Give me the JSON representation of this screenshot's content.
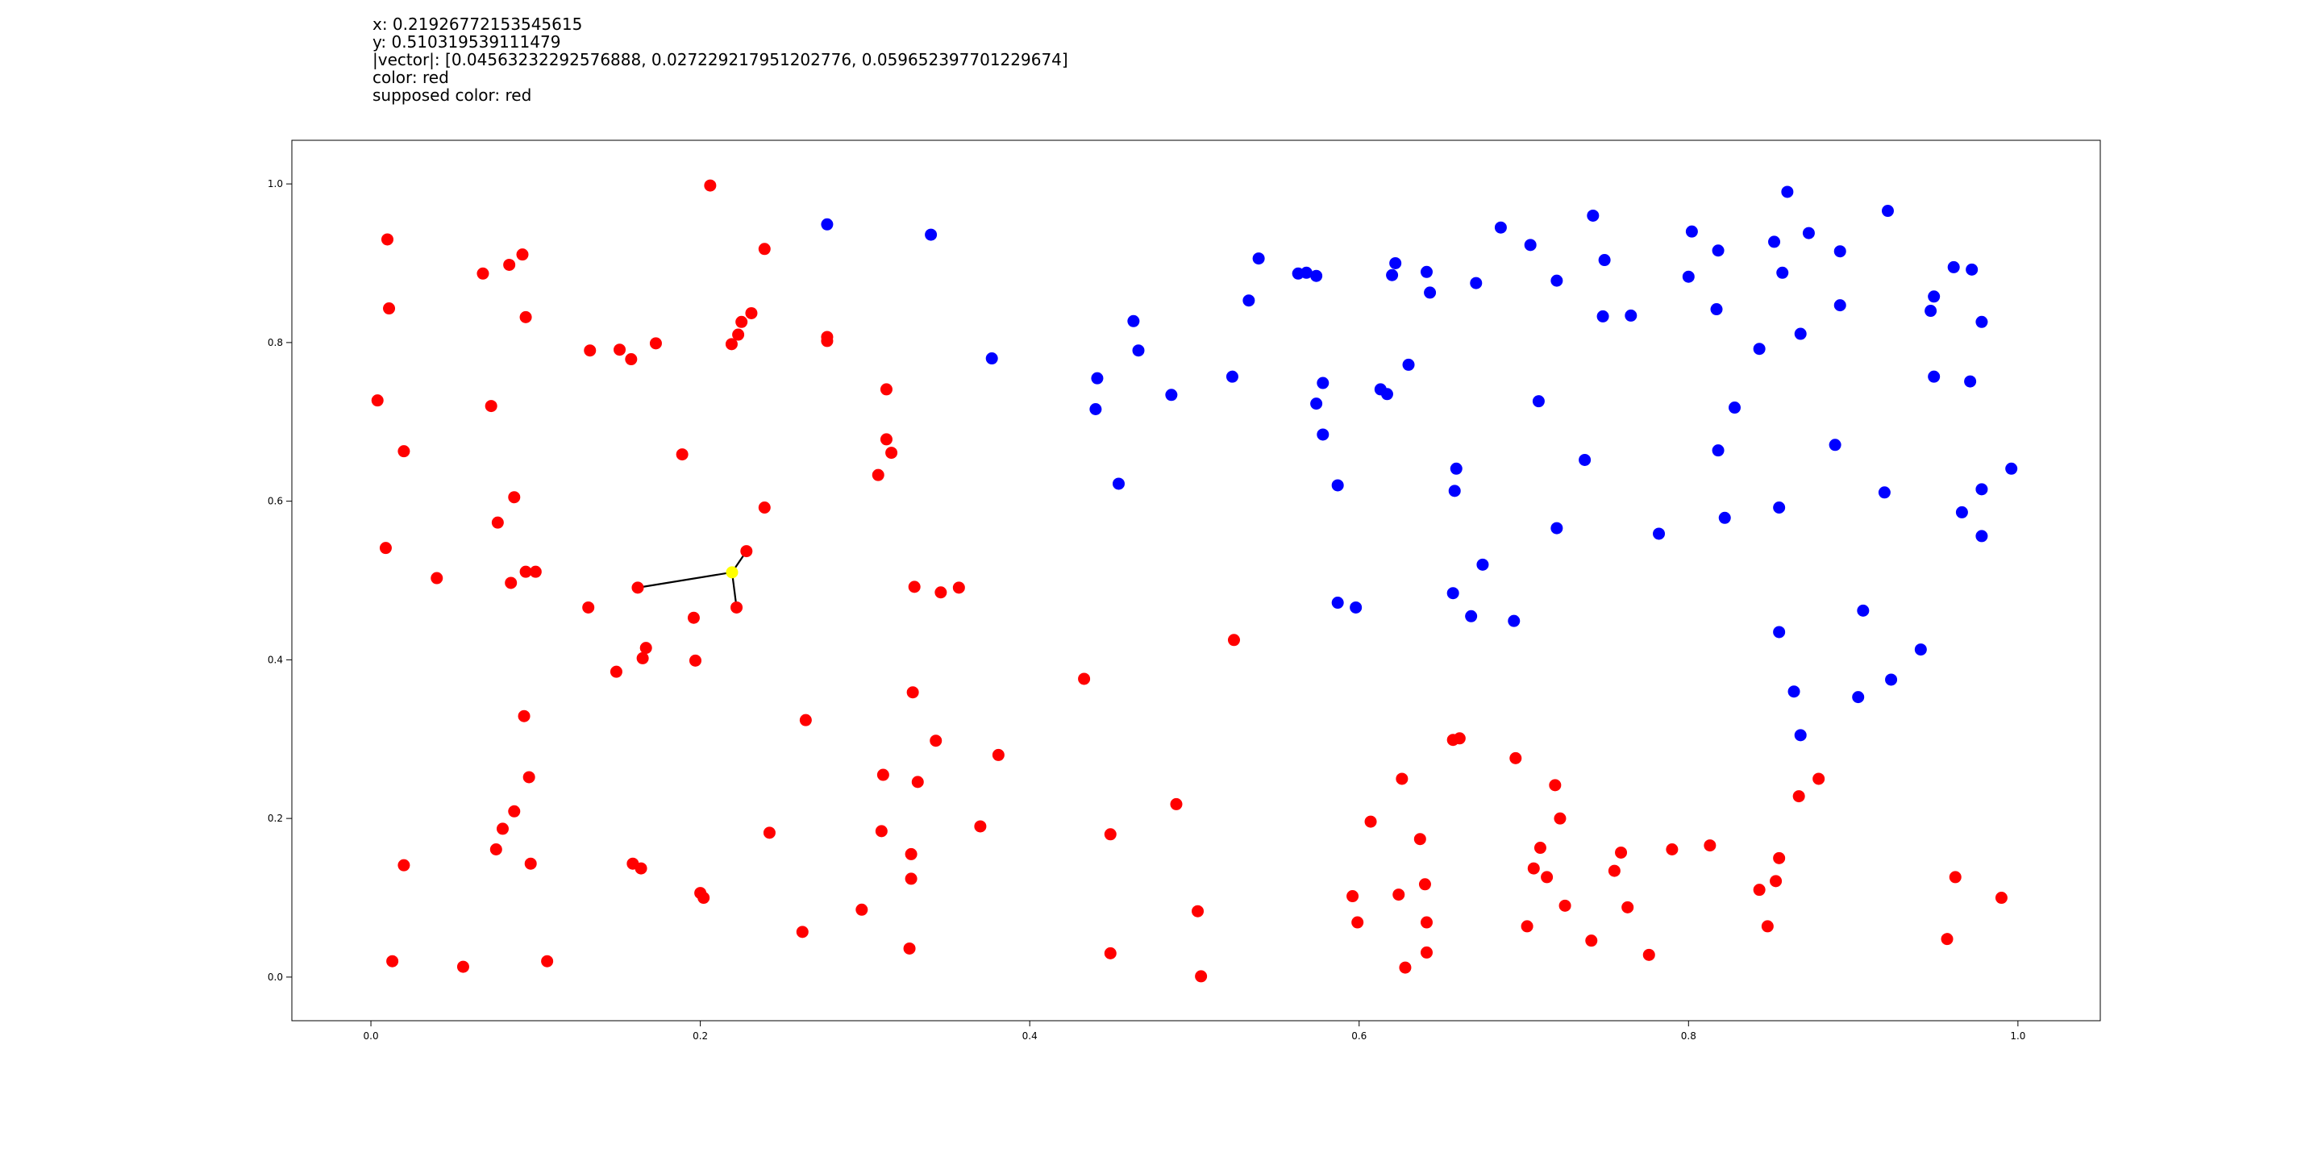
{
  "readout": {
    "x_line": "x: 0.21926772153545615",
    "y_line": "y: 0.510319539111479",
    "vector_line": "|vector|: [0.04563232292576888, 0.027229217951202776, 0.059652397701229674]",
    "color_line": "color: red",
    "supposed_color_line": "supposed color: red"
  },
  "chart_data": {
    "type": "scatter",
    "xlim": [
      -0.048,
      1.05
    ],
    "ylim": [
      -0.055,
      1.055
    ],
    "x_ticks": [
      0.0,
      0.2,
      0.4,
      0.6,
      0.8,
      1.0
    ],
    "x_tick_labels": [
      "0.0",
      "0.2",
      "0.4",
      "0.6",
      "0.8",
      "1.0"
    ],
    "y_ticks": [
      0.0,
      0.2,
      0.4,
      0.6,
      0.8,
      1.0
    ],
    "y_tick_labels": [
      "0.0",
      "0.2",
      "0.4",
      "0.6",
      "0.8",
      "1.0"
    ],
    "grid": false,
    "colors": {
      "red": "#ff0000",
      "blue": "#0000ff",
      "query": "#ffff00",
      "neighbor_line": "#000000"
    },
    "series": [
      {
        "color": "red",
        "points": [
          [
            0.206,
            0.998
          ],
          [
            0.01,
            0.93
          ],
          [
            0.068,
            0.887
          ],
          [
            0.084,
            0.898
          ],
          [
            0.092,
            0.911
          ],
          [
            0.011,
            0.843
          ],
          [
            0.094,
            0.832
          ],
          [
            0.239,
            0.918
          ],
          [
            0.231,
            0.837
          ],
          [
            0.225,
            0.826
          ],
          [
            0.223,
            0.81
          ],
          [
            0.219,
            0.798
          ],
          [
            0.277,
            0.807
          ],
          [
            0.277,
            0.802
          ],
          [
            0.133,
            0.79
          ],
          [
            0.151,
            0.791
          ],
          [
            0.158,
            0.779
          ],
          [
            0.173,
            0.799
          ],
          [
            0.004,
            0.727
          ],
          [
            0.073,
            0.72
          ],
          [
            0.02,
            0.663
          ],
          [
            0.313,
            0.741
          ],
          [
            0.313,
            0.678
          ],
          [
            0.316,
            0.661
          ],
          [
            0.308,
            0.633
          ],
          [
            0.189,
            0.659
          ],
          [
            0.087,
            0.605
          ],
          [
            0.077,
            0.573
          ],
          [
            0.009,
            0.541
          ],
          [
            0.04,
            0.503
          ],
          [
            0.085,
            0.497
          ],
          [
            0.094,
            0.511
          ],
          [
            0.1,
            0.511
          ],
          [
            0.239,
            0.592
          ],
          [
            0.228,
            0.537
          ],
          [
            0.162,
            0.491
          ],
          [
            0.222,
            0.466
          ],
          [
            0.196,
            0.453
          ],
          [
            0.132,
            0.466
          ],
          [
            0.167,
            0.415
          ],
          [
            0.165,
            0.402
          ],
          [
            0.197,
            0.399
          ],
          [
            0.149,
            0.385
          ],
          [
            0.33,
            0.492
          ],
          [
            0.346,
            0.485
          ],
          [
            0.357,
            0.491
          ],
          [
            0.093,
            0.329
          ],
          [
            0.096,
            0.252
          ],
          [
            0.087,
            0.209
          ],
          [
            0.08,
            0.187
          ],
          [
            0.076,
            0.161
          ],
          [
            0.097,
            0.143
          ],
          [
            0.02,
            0.141
          ],
          [
            0.264,
            0.324
          ],
          [
            0.329,
            0.359
          ],
          [
            0.343,
            0.298
          ],
          [
            0.381,
            0.28
          ],
          [
            0.311,
            0.255
          ],
          [
            0.332,
            0.246
          ],
          [
            0.37,
            0.19
          ],
          [
            0.31,
            0.184
          ],
          [
            0.242,
            0.182
          ],
          [
            0.328,
            0.155
          ],
          [
            0.328,
            0.124
          ],
          [
            0.159,
            0.143
          ],
          [
            0.164,
            0.137
          ],
          [
            0.2,
            0.106
          ],
          [
            0.202,
            0.1
          ],
          [
            0.298,
            0.085
          ],
          [
            0.262,
            0.057
          ],
          [
            0.327,
            0.036
          ],
          [
            0.013,
            0.02
          ],
          [
            0.056,
            0.013
          ],
          [
            0.107,
            0.02
          ],
          [
            0.433,
            0.376
          ],
          [
            0.524,
            0.425
          ],
          [
            0.489,
            0.218
          ],
          [
            0.449,
            0.18
          ],
          [
            0.502,
            0.083
          ],
          [
            0.449,
            0.03
          ],
          [
            0.504,
            0.001
          ],
          [
            0.657,
            0.299
          ],
          [
            0.661,
            0.301
          ],
          [
            0.695,
            0.276
          ],
          [
            0.626,
            0.25
          ],
          [
            0.719,
            0.242
          ],
          [
            0.607,
            0.196
          ],
          [
            0.722,
            0.2
          ],
          [
            0.637,
            0.174
          ],
          [
            0.71,
            0.163
          ],
          [
            0.706,
            0.137
          ],
          [
            0.714,
            0.126
          ],
          [
            0.596,
            0.102
          ],
          [
            0.624,
            0.104
          ],
          [
            0.64,
            0.117
          ],
          [
            0.599,
            0.069
          ],
          [
            0.641,
            0.069
          ],
          [
            0.641,
            0.031
          ],
          [
            0.628,
            0.012
          ],
          [
            0.725,
            0.09
          ],
          [
            0.702,
            0.064
          ],
          [
            0.741,
            0.046
          ],
          [
            0.759,
            0.157
          ],
          [
            0.755,
            0.134
          ],
          [
            0.763,
            0.088
          ],
          [
            0.776,
            0.028
          ],
          [
            0.79,
            0.161
          ],
          [
            0.813,
            0.166
          ],
          [
            0.879,
            0.25
          ],
          [
            0.867,
            0.228
          ],
          [
            0.855,
            0.15
          ],
          [
            0.843,
            0.11
          ],
          [
            0.853,
            0.121
          ],
          [
            0.848,
            0.064
          ],
          [
            0.962,
            0.126
          ],
          [
            0.957,
            0.048
          ],
          [
            0.99,
            0.1
          ]
        ]
      },
      {
        "color": "blue",
        "points": [
          [
            0.277,
            0.949
          ],
          [
            0.34,
            0.936
          ],
          [
            0.377,
            0.78
          ],
          [
            0.539,
            0.906
          ],
          [
            0.533,
            0.853
          ],
          [
            0.563,
            0.887
          ],
          [
            0.568,
            0.888
          ],
          [
            0.574,
            0.884
          ],
          [
            0.622,
            0.9
          ],
          [
            0.62,
            0.885
          ],
          [
            0.641,
            0.889
          ],
          [
            0.643,
            0.863
          ],
          [
            0.671,
            0.875
          ],
          [
            0.463,
            0.827
          ],
          [
            0.466,
            0.79
          ],
          [
            0.441,
            0.755
          ],
          [
            0.44,
            0.716
          ],
          [
            0.486,
            0.734
          ],
          [
            0.523,
            0.757
          ],
          [
            0.578,
            0.749
          ],
          [
            0.574,
            0.723
          ],
          [
            0.578,
            0.684
          ],
          [
            0.613,
            0.741
          ],
          [
            0.617,
            0.735
          ],
          [
            0.63,
            0.772
          ],
          [
            0.454,
            0.622
          ],
          [
            0.587,
            0.62
          ],
          [
            0.587,
            0.472
          ],
          [
            0.598,
            0.466
          ],
          [
            0.659,
            0.641
          ],
          [
            0.658,
            0.613
          ],
          [
            0.675,
            0.52
          ],
          [
            0.657,
            0.484
          ],
          [
            0.668,
            0.455
          ],
          [
            0.694,
            0.449
          ],
          [
            0.686,
            0.945
          ],
          [
            0.704,
            0.923
          ],
          [
            0.742,
            0.96
          ],
          [
            0.749,
            0.904
          ],
          [
            0.72,
            0.878
          ],
          [
            0.748,
            0.833
          ],
          [
            0.765,
            0.834
          ],
          [
            0.709,
            0.726
          ],
          [
            0.737,
            0.652
          ],
          [
            0.72,
            0.566
          ],
          [
            0.782,
            0.559
          ],
          [
            0.802,
            0.94
          ],
          [
            0.818,
            0.916
          ],
          [
            0.8,
            0.883
          ],
          [
            0.817,
            0.842
          ],
          [
            0.86,
            0.99
          ],
          [
            0.852,
            0.927
          ],
          [
            0.873,
            0.938
          ],
          [
            0.857,
            0.888
          ],
          [
            0.892,
            0.915
          ],
          [
            0.921,
            0.966
          ],
          [
            0.892,
            0.847
          ],
          [
            0.868,
            0.811
          ],
          [
            0.843,
            0.792
          ],
          [
            0.828,
            0.718
          ],
          [
            0.818,
            0.664
          ],
          [
            0.889,
            0.671
          ],
          [
            0.822,
            0.579
          ],
          [
            0.855,
            0.592
          ],
          [
            0.919,
            0.611
          ],
          [
            0.949,
            0.757
          ],
          [
            0.961,
            0.895
          ],
          [
            0.972,
            0.892
          ],
          [
            0.949,
            0.858
          ],
          [
            0.947,
            0.84
          ],
          [
            0.978,
            0.826
          ],
          [
            0.971,
            0.751
          ],
          [
            0.978,
            0.615
          ],
          [
            0.966,
            0.586
          ],
          [
            0.978,
            0.556
          ],
          [
            0.996,
            0.641
          ],
          [
            0.855,
            0.435
          ],
          [
            0.906,
            0.462
          ],
          [
            0.864,
            0.36
          ],
          [
            0.868,
            0.305
          ],
          [
            0.903,
            0.353
          ],
          [
            0.923,
            0.375
          ],
          [
            0.941,
            0.413
          ]
        ]
      }
    ],
    "query_point": [
      0.21926772153545615,
      0.510319539111479
    ],
    "neighbor_lines": [
      [
        [
          0.21926772153545615,
          0.510319539111479
        ],
        [
          0.162,
          0.491
        ]
      ],
      [
        [
          0.21926772153545615,
          0.510319539111479
        ],
        [
          0.228,
          0.537
        ]
      ],
      [
        [
          0.21926772153545615,
          0.510319539111479
        ],
        [
          0.222,
          0.466
        ]
      ]
    ]
  }
}
